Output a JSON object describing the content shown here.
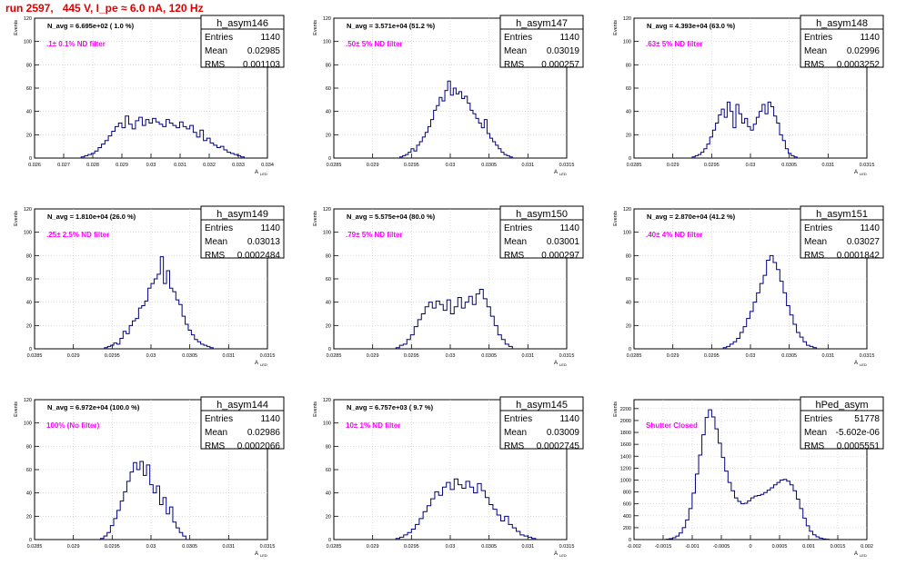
{
  "run_title": "run 2597,   445 V, I_pe ≈ 6.0 nA, 120 Hz",
  "colors": {
    "hist": "#000080",
    "filter_text": "#ff00ff",
    "title": "#e00000",
    "grid": "#c8c8c8"
  },
  "chart_data": [
    {
      "type": "histogram",
      "name": "h_asym146",
      "n_avg": "N_avg = 6.695e+02 ( 1.0 %)",
      "filter": ".1± 0.1% ND filter",
      "stats": {
        "entries": "1140",
        "mean": "0.02985",
        "rms": "0.001103"
      },
      "ylabel": "Events",
      "xlabel": "A",
      "xlabel_sub": "LED",
      "xlim": [
        0.026,
        0.034
      ],
      "xticks": [
        "0.026",
        "0.027",
        "0.028",
        "0.029",
        "0.03",
        "0.031",
        "0.032",
        "0.033",
        "0.034"
      ],
      "ylim": [
        0,
        120
      ],
      "yticks": [
        "0",
        "20",
        "40",
        "60",
        "80",
        "100",
        "120"
      ],
      "bin_range": [
        0.0276,
        0.0332
      ],
      "values": [
        1,
        2,
        3,
        4,
        6,
        9,
        12,
        15,
        19,
        23,
        27,
        30,
        26,
        36,
        29,
        25,
        32,
        35,
        28,
        33,
        30,
        34,
        31,
        29,
        27,
        33,
        30,
        28,
        26,
        31,
        27,
        25,
        28,
        22,
        18,
        24,
        15,
        17,
        13,
        11,
        9,
        10,
        7,
        5,
        4,
        3,
        2,
        1
      ]
    },
    {
      "type": "histogram",
      "name": "h_asym147",
      "n_avg": "N_avg = 3.571e+04 (51.2 %)",
      "filter": ".50± 5% ND filter",
      "stats": {
        "entries": "1140",
        "mean": "0.03019",
        "rms": "0.000257"
      },
      "ylabel": "Events",
      "xlabel": "A",
      "xlabel_sub": "LED",
      "xlim": [
        0.0285,
        0.0315
      ],
      "xticks": [
        "0.0285",
        "0.029",
        "0.0295",
        "0.03",
        "0.0305",
        "0.031",
        "0.0315"
      ],
      "ylim": [
        0,
        120
      ],
      "yticks": [
        "0",
        "20",
        "40",
        "60",
        "80",
        "100",
        "120"
      ],
      "bin_range": [
        0.02935,
        0.0308
      ],
      "values": [
        1,
        2,
        3,
        5,
        8,
        6,
        11,
        14,
        18,
        22,
        27,
        33,
        41,
        45,
        52,
        49,
        58,
        66,
        54,
        60,
        55,
        57,
        51,
        53,
        47,
        41,
        38,
        34,
        30,
        26,
        33,
        21,
        17,
        14,
        11,
        8,
        5,
        3,
        2,
        1
      ]
    },
    {
      "type": "histogram",
      "name": "h_asym148",
      "n_avg": "N_avg = 4.393e+04 (63.0 %)",
      "filter": ".63± 5% ND filter",
      "stats": {
        "entries": "1140",
        "mean": "0.02996",
        "rms": "0.0003252"
      },
      "ylabel": "Events",
      "xlabel": "A",
      "xlabel_sub": "LED",
      "xlim": [
        0.0285,
        0.0315
      ],
      "xticks": [
        "0.0285",
        "0.029",
        "0.0295",
        "0.03",
        "0.0305",
        "0.031",
        "0.0315"
      ],
      "ylim": [
        0,
        120
      ],
      "yticks": [
        "0",
        "20",
        "40",
        "60",
        "80",
        "100",
        "120"
      ],
      "bin_range": [
        0.02925,
        0.0306
      ],
      "values": [
        1,
        2,
        3,
        5,
        8,
        12,
        18,
        24,
        30,
        37,
        42,
        35,
        48,
        40,
        26,
        46,
        38,
        30,
        34,
        27,
        24,
        29,
        35,
        40,
        46,
        38,
        48,
        44,
        36,
        30,
        20,
        15,
        8,
        4,
        2,
        1
      ]
    },
    {
      "type": "histogram",
      "name": "h_asym149",
      "n_avg": "N_avg = 1.810e+04 (26.0 %)",
      "filter": ".25± 2.5% ND filter",
      "stats": {
        "entries": "1140",
        "mean": "0.03013",
        "rms": "0.0002484"
      },
      "ylabel": "Events",
      "xlabel": "A",
      "xlabel_sub": "LED",
      "xlim": [
        0.0285,
        0.0315
      ],
      "xticks": [
        "0.0285",
        "0.029",
        "0.0295",
        "0.03",
        "0.0305",
        "0.031",
        "0.0315"
      ],
      "ylim": [
        0,
        120
      ],
      "yticks": [
        "0",
        "20",
        "40",
        "60",
        "80",
        "100",
        "120"
      ],
      "bin_range": [
        0.0294,
        0.0308
      ],
      "values": [
        1,
        2,
        3,
        5,
        4,
        9,
        15,
        13,
        20,
        24,
        26,
        35,
        37,
        41,
        52,
        56,
        60,
        64,
        79,
        56,
        67,
        52,
        49,
        42,
        38,
        28,
        21,
        16,
        12,
        8,
        6,
        4,
        3,
        2,
        1
      ]
    },
    {
      "type": "histogram",
      "name": "h_asym150",
      "n_avg": "N_avg = 5.575e+04 (80.0 %)",
      "filter": ".79± 5% ND filter",
      "stats": {
        "entries": "1140",
        "mean": "0.03001",
        "rms": "0.000297"
      },
      "ylabel": "Events",
      "xlabel": "A",
      "xlabel_sub": "LED",
      "xlim": [
        0.0285,
        0.0315
      ],
      "xticks": [
        "0.0285",
        "0.029",
        "0.0295",
        "0.03",
        "0.0305",
        "0.031",
        "0.0315"
      ],
      "ylim": [
        0,
        120
      ],
      "yticks": [
        "0",
        "20",
        "40",
        "60",
        "80",
        "100",
        "120"
      ],
      "bin_range": [
        0.0293,
        0.0308
      ],
      "values": [
        1,
        3,
        4,
        8,
        12,
        19,
        25,
        30,
        36,
        40,
        35,
        41,
        38,
        33,
        42,
        30,
        36,
        44,
        35,
        40,
        45,
        38,
        47,
        51,
        43,
        36,
        28,
        20,
        12,
        8,
        4,
        2
      ]
    },
    {
      "type": "histogram",
      "name": "h_asym151",
      "n_avg": "N_avg = 2.870e+04 (41.2 %)",
      "filter": ".40± 4% ND filter",
      "stats": {
        "entries": "1140",
        "mean": "0.03027",
        "rms": "0.0001842"
      },
      "ylabel": "Events",
      "xlabel": "A",
      "xlabel_sub": "LED",
      "xlim": [
        0.0285,
        0.0315
      ],
      "xticks": [
        "0.0285",
        "0.029",
        "0.0295",
        "0.03",
        "0.0305",
        "0.031",
        "0.0315"
      ],
      "ylim": [
        0,
        120
      ],
      "yticks": [
        "0",
        "20",
        "40",
        "60",
        "80",
        "100",
        "120"
      ],
      "bin_range": [
        0.02965,
        0.03085
      ],
      "values": [
        1,
        2,
        4,
        6,
        9,
        14,
        19,
        26,
        32,
        40,
        48,
        56,
        63,
        76,
        80,
        74,
        68,
        58,
        48,
        37,
        29,
        21,
        14,
        10,
        6,
        3,
        2,
        1
      ]
    },
    {
      "type": "histogram",
      "name": "h_asym144",
      "n_avg": "N_avg = 6.972e+04 (100.0 %)",
      "filter": "100% (No filter)",
      "stats": {
        "entries": "1140",
        "mean": "0.02986",
        "rms": "0.0002066"
      },
      "ylabel": "Events",
      "xlabel": "A",
      "xlabel_sub": "LED",
      "xlim": [
        0.0285,
        0.0315
      ],
      "xticks": [
        "0.0285",
        "0.029",
        "0.0295",
        "0.03",
        "0.0305",
        "0.031",
        "0.0315"
      ],
      "ylim": [
        0,
        120
      ],
      "yticks": [
        "0",
        "20",
        "40",
        "60",
        "80",
        "100",
        "120"
      ],
      "bin_range": [
        0.02935,
        0.03045
      ],
      "values": [
        1,
        3,
        6,
        12,
        18,
        25,
        33,
        41,
        50,
        58,
        66,
        60,
        67,
        55,
        64,
        47,
        40,
        46,
        30,
        36,
        22,
        28,
        15,
        10,
        6,
        3
      ]
    },
    {
      "type": "histogram",
      "name": "h_asym145",
      "n_avg": "N_avg = 6.757e+03 ( 9.7 %)",
      "filter": "10± 1% ND filter",
      "stats": {
        "entries": "1140",
        "mean": "0.03009",
        "rms": "0.0002745"
      },
      "ylabel": "Events",
      "xlabel": "A",
      "xlabel_sub": "LED",
      "xlim": [
        0.0285,
        0.0315
      ],
      "xticks": [
        "0.0285",
        "0.029",
        "0.0295",
        "0.03",
        "0.0305",
        "0.031",
        "0.0315"
      ],
      "ylim": [
        0,
        120
      ],
      "yticks": [
        "0",
        "20",
        "40",
        "60",
        "80",
        "100",
        "120"
      ],
      "bin_range": [
        0.0293,
        0.0311
      ],
      "values": [
        1,
        2,
        4,
        6,
        9,
        13,
        18,
        24,
        29,
        35,
        41,
        38,
        45,
        49,
        43,
        52,
        47,
        44,
        50,
        45,
        40,
        48,
        42,
        36,
        30,
        26,
        21,
        16,
        20,
        13,
        10,
        7,
        4,
        3,
        2,
        1
      ]
    },
    {
      "type": "histogram",
      "name": "hPed_asym",
      "n_avg": "",
      "filter": "Shutter Closed",
      "stats": {
        "entries": "51778",
        "mean": "-5.602e-06",
        "rms": "0.0005551"
      },
      "ylabel": "Events",
      "xlabel": "A",
      "xlabel_sub": "LED",
      "xlim": [
        -0.002,
        0.002
      ],
      "xticks": [
        "-0.002",
        "-0.0015",
        "-0.001",
        "-0.0005",
        "0",
        "0.0005",
        "0.001",
        "0.0015",
        "0.002"
      ],
      "ylim": [
        0,
        2350
      ],
      "yticks": [
        "0",
        "200",
        "400",
        "600",
        "800",
        "1000",
        "1200",
        "1400",
        "1600",
        "1800",
        "2000",
        "2200"
      ],
      "bin_range": [
        -0.00145,
        0.00135
      ],
      "values": [
        5,
        15,
        30,
        60,
        110,
        200,
        330,
        520,
        780,
        1100,
        1420,
        1760,
        2050,
        2180,
        2060,
        1860,
        1620,
        1380,
        1150,
        960,
        820,
        700,
        640,
        600,
        610,
        650,
        700,
        730,
        740,
        760,
        790,
        830,
        870,
        920,
        960,
        1000,
        1010,
        980,
        920,
        820,
        680,
        520,
        360,
        230,
        140,
        80,
        45,
        25,
        12,
        6
      ]
    }
  ]
}
